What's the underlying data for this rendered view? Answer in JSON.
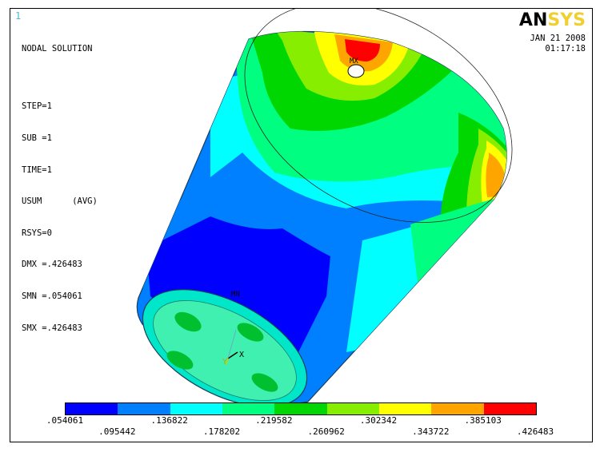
{
  "window_number": "1",
  "info_lines": [
    "NODAL SOLUTION",
    "STEP=1",
    "SUB =1",
    "TIME=1",
    "USUM      (AVG)",
    "RSYS=0",
    "DMX =.426483",
    "SMN =.054061",
    "SMX =.426483"
  ],
  "logo": {
    "an": "AN",
    "sys": "SYS"
  },
  "date": "JAN 21 2008",
  "time": "01:17:18",
  "marker_mx": "MX",
  "marker_mn": "MN",
  "axis_x": "X",
  "axis_y": "Y",
  "legend": {
    "colors": [
      "#0000ff",
      "#0080ff",
      "#00ffff",
      "#00ff80",
      "#00d600",
      "#88ee00",
      "#ffff00",
      "#ffa500",
      "#ff0000"
    ],
    "top_labels": [
      ".054061",
      ".136822",
      ".219582",
      ".302342",
      ".385103"
    ],
    "bottom_labels": [
      ".095442",
      ".178202",
      ".260962",
      ".343722",
      ".426483"
    ]
  }
}
